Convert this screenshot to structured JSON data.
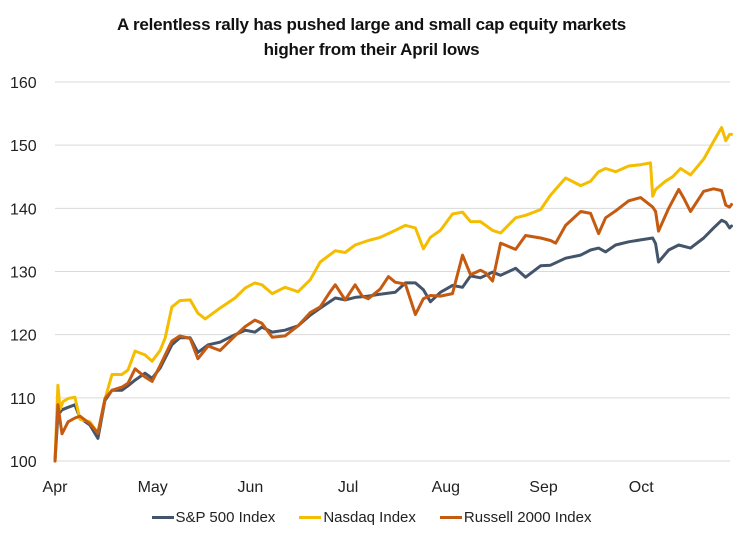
{
  "chart_data": {
    "type": "line",
    "title": "A relentless rally has pushed large and small cap equity markets higher from their April lows",
    "title_lines": [
      "A relentless rally has pushed large and small cap equity markets",
      "higher from their April lows"
    ],
    "xlabel": "",
    "ylabel": "",
    "ylim": [
      100,
      160
    ],
    "yticks": [
      100,
      110,
      120,
      130,
      140,
      150,
      160
    ],
    "ytick_labels": [
      "100",
      "110",
      "120",
      "130",
      "140",
      "150",
      "160"
    ],
    "x_unit": "days since Apr 1",
    "xlim": [
      0,
      210
    ],
    "xticks": [
      0,
      30.5,
      61,
      91.5,
      122,
      152.5,
      183
    ],
    "xtick_labels": [
      "Apr",
      "May",
      "Jun",
      "Jul",
      "Aug",
      "Sep",
      "Oct"
    ],
    "grid": true,
    "legend_position": "bottom",
    "series": [
      {
        "name": "S&P 500 Index",
        "color": "#44546a",
        "x": [
          0,
          0.9,
          2.2,
          4.1,
          6.2,
          7.8,
          10.9,
          13.4,
          15.6,
          17.8,
          20.9,
          22.8,
          25,
          28.1,
          30.3,
          32.8,
          36.5,
          39,
          42.2,
          44.6,
          47.8,
          51.5,
          56.2,
          59.4,
          62.4,
          64.6,
          67.8,
          71.8,
          75.9,
          79.7,
          82.8,
          87.5,
          90.6,
          93.7,
          97.8,
          101.5,
          106.2,
          109.4,
          112.5,
          115,
          117.2,
          120.3,
          124.1,
          127.2,
          129.7,
          132.8,
          136.6,
          139.1,
          143.8,
          146.9,
          151.6,
          154.7,
          159.4,
          164.1,
          167.2,
          169.7,
          171.9,
          175,
          179.1,
          182.8,
          186.6,
          187.5,
          188.4,
          191.6,
          194.7,
          198.4,
          202.5,
          205.6,
          208.1,
          209.4,
          210.6,
          211.2
        ],
        "values": [
          100,
          107.3,
          108.1,
          108.5,
          108.9,
          106.8,
          105.7,
          103.6,
          109.6,
          111.2,
          111.2,
          111.9,
          112.8,
          113.9,
          113.1,
          114.7,
          118.4,
          119.5,
          119.5,
          117.2,
          118.4,
          118.8,
          120,
          120.7,
          120.4,
          121.2,
          120.4,
          120.7,
          121.4,
          123.1,
          124.2,
          125.8,
          125.5,
          125.9,
          126.1,
          126.4,
          126.7,
          128.2,
          128.2,
          127.1,
          125.2,
          126.7,
          127.8,
          127.5,
          129.3,
          129,
          129.9,
          129.4,
          130.5,
          129.1,
          130.9,
          131,
          132.1,
          132.6,
          133.4,
          133.7,
          133.1,
          134.2,
          134.7,
          135,
          135.3,
          134.4,
          131.5,
          133.4,
          134.2,
          133.7,
          135.3,
          136.9,
          138.1,
          137.8,
          136.9,
          137.2
        ]
      },
      {
        "name": "Nasdaq Index",
        "color": "#f5bd00",
        "x": [
          0,
          0.9,
          1.6,
          2.5,
          4.1,
          6.2,
          7.8,
          10.9,
          13.4,
          15.6,
          17.8,
          20.9,
          22.8,
          25,
          28.1,
          30.3,
          32.8,
          34.4,
          36.5,
          39,
          42.2,
          44.6,
          46.9,
          51.5,
          56.2,
          59.4,
          62.4,
          64.6,
          67.8,
          71.8,
          75.9,
          79.7,
          82.8,
          87.5,
          90.6,
          93.7,
          97.8,
          101.5,
          106.2,
          109.4,
          112.5,
          115,
          117.2,
          120.3,
          124.1,
          127.2,
          129.7,
          132.8,
          136.6,
          139.1,
          143.8,
          146.9,
          151.6,
          154.7,
          159.4,
          164.1,
          167.2,
          169.7,
          171.9,
          175,
          179.1,
          182.8,
          185.9,
          186.6,
          187.5,
          190.6,
          192.8,
          195.3,
          198.4,
          202.5,
          205.6,
          208.1,
          209.4,
          210.6,
          211.2
        ],
        "values": [
          100,
          112,
          108.2,
          109.4,
          109.9,
          110.1,
          106.6,
          106.2,
          104.4,
          109.8,
          113.7,
          113.7,
          114.4,
          117.4,
          116.8,
          115.8,
          117.5,
          119.5,
          124.4,
          125.4,
          125.5,
          123.4,
          122.5,
          124.2,
          125.8,
          127.4,
          128.2,
          127.9,
          126.5,
          127.5,
          126.8,
          128.7,
          131.5,
          133.3,
          133,
          134.2,
          134.9,
          135.4,
          136.5,
          137.3,
          136.9,
          133.6,
          135.4,
          136.5,
          139.1,
          139.4,
          137.9,
          137.9,
          136.5,
          136.1,
          138.5,
          138.9,
          139.8,
          142.1,
          144.8,
          143.6,
          144.3,
          145.8,
          146.3,
          145.8,
          146.7,
          146.9,
          147.2,
          141.9,
          143,
          144.3,
          145,
          146.3,
          145.3,
          147.8,
          150.6,
          152.8,
          150.7,
          151.7,
          151.7
        ]
      },
      {
        "name": "Russell 2000 Index",
        "color": "#c55a11",
        "x": [
          0,
          0.9,
          2.2,
          4.1,
          6.2,
          7.8,
          10.9,
          13.4,
          15.6,
          17.8,
          20.9,
          22.8,
          25,
          28.1,
          30.3,
          32.8,
          36.5,
          39,
          42.2,
          44.6,
          47.8,
          51.5,
          56.2,
          59.4,
          62.4,
          64.6,
          67.8,
          71.8,
          75.9,
          79.7,
          82.8,
          85.9,
          87.5,
          90.6,
          93.7,
          95.9,
          97.8,
          101.5,
          104.1,
          106.2,
          109.4,
          112.5,
          115,
          117.2,
          120.3,
          124.1,
          127.2,
          129.7,
          132.8,
          134.4,
          136.6,
          139.1,
          143.8,
          146.9,
          151.6,
          154.7,
          156.3,
          159.4,
          164.1,
          167.2,
          169.7,
          171.9,
          175,
          179.1,
          182.8,
          186.6,
          187.5,
          188.4,
          191.6,
          194.7,
          196.3,
          198.4,
          202.5,
          205.6,
          208.1,
          209.4,
          210.6,
          211.2
        ],
        "values": [
          100,
          108.9,
          104.3,
          106.2,
          106.8,
          107.1,
          105.9,
          104.4,
          109.9,
          111.2,
          111.7,
          112.3,
          114.6,
          113.3,
          112.6,
          115.1,
          119,
          119.8,
          119.4,
          116.2,
          118.2,
          117.5,
          119.8,
          121.3,
          122.3,
          121.8,
          119.6,
          119.8,
          121.4,
          123.5,
          124.4,
          126.8,
          127.9,
          125.5,
          127.9,
          126.1,
          125.7,
          127.2,
          129.2,
          128.3,
          128,
          123.2,
          125.7,
          126.2,
          126.1,
          126.5,
          132.6,
          129.5,
          130.2,
          129.8,
          128.5,
          134.5,
          133.5,
          135.7,
          135.3,
          134.9,
          134.5,
          137.3,
          139.5,
          139.2,
          136,
          138.5,
          139.6,
          141.2,
          141.7,
          140.2,
          139.5,
          136.4,
          140,
          143,
          141.6,
          139.5,
          142.7,
          143.1,
          142.8,
          140.5,
          140.2,
          140.6
        ]
      }
    ]
  }
}
